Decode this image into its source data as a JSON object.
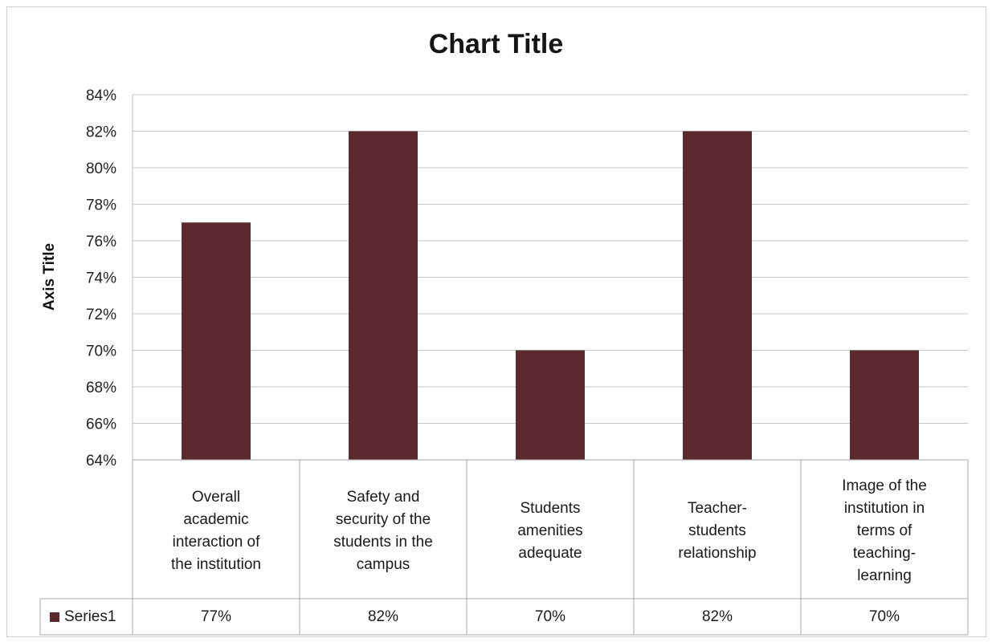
{
  "chart_data": {
    "type": "bar",
    "title": "Chart Title",
    "ylabel": "Axis Title",
    "categories": [
      "Overall academic interaction of the institution",
      "Safety and security of the students in the campus",
      "Students amenities adequate",
      "Teacher-students relationship",
      "Image of the institution in terms of teaching-learning"
    ],
    "category_lines": [
      [
        "Overall",
        "academic",
        "interaction of",
        "the institution"
      ],
      [
        "Safety and",
        "security of the",
        "students in the",
        "campus"
      ],
      [
        "Students",
        "amenities",
        "adequate"
      ],
      [
        "Teacher-",
        "students",
        "relationship"
      ],
      [
        "Image of the",
        "institution in",
        "terms of",
        "teaching-",
        "learning"
      ]
    ],
    "series": [
      {
        "name": "Series1",
        "values": [
          77,
          82,
          70,
          82,
          70
        ],
        "labels": [
          "77%",
          "82%",
          "70%",
          "82%",
          "70%"
        ],
        "color": "#5a2a2e"
      }
    ],
    "ylim": [
      64,
      84
    ],
    "yticks": [
      "84%",
      "82%",
      "80%",
      "78%",
      "76%",
      "74%",
      "72%",
      "70%",
      "68%",
      "66%",
      "64%"
    ],
    "grid": true,
    "data_table": true
  }
}
